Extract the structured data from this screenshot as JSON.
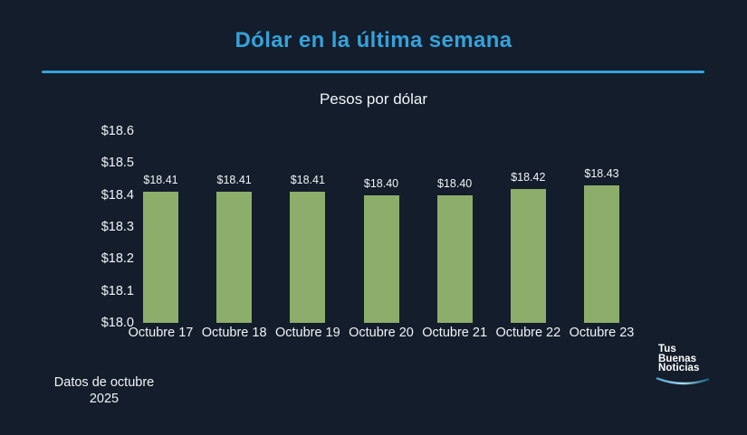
{
  "page": {
    "title": "Dólar en la última semana",
    "footnote_line1": "Datos de octubre",
    "footnote_line2": "2025",
    "colors": {
      "background": "#131d2b",
      "accent": "#35a2d9",
      "bar": "#8dae6b",
      "text": "#f2f4f6"
    }
  },
  "logo": {
    "line1": "Tus",
    "line2": "Buenas",
    "line3": "Noticias",
    "swoosh_color_left": "#4f9fd4",
    "swoosh_color_mid": "#aadcf2",
    "swoosh_color_right": "#11607f"
  },
  "chart_data": {
    "type": "bar",
    "title": "Pesos por dólar",
    "categories": [
      "Octubre 17",
      "Octubre 18",
      "Octubre 19",
      "Octubre 20",
      "Octubre 21",
      "Octubre 22",
      "Octubre 23"
    ],
    "values": [
      18.41,
      18.41,
      18.41,
      18.4,
      18.4,
      18.42,
      18.43
    ],
    "value_labels": [
      "$18.41",
      "$18.41",
      "$18.41",
      "$18.40",
      "$18.40",
      "$18.42",
      "$18.43"
    ],
    "yticks": [
      18.0,
      18.1,
      18.2,
      18.3,
      18.4,
      18.5,
      18.6
    ],
    "ytick_labels": [
      "$18.0",
      "$18.1",
      "$18.2",
      "$18.3",
      "$18.4",
      "$18.5",
      "$18.6"
    ],
    "ylim": [
      18.0,
      18.6
    ],
    "xlabel": "",
    "ylabel": "",
    "grid": false,
    "legend": false,
    "bar_color": "#8dae6b"
  }
}
